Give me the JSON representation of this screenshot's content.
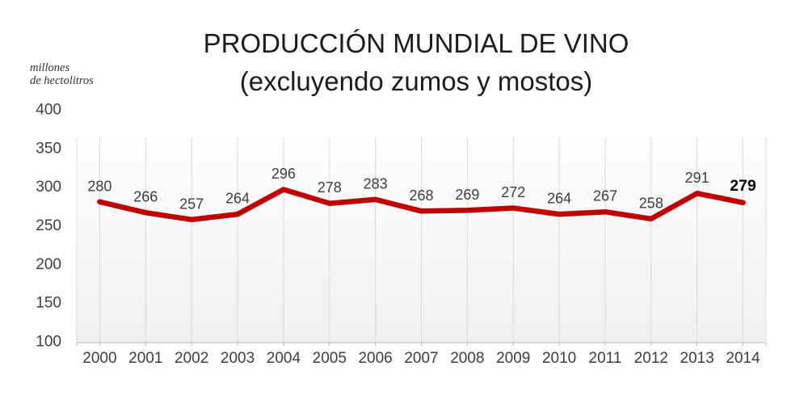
{
  "title": {
    "line1": "PRODUCCIÓN MUNDIAL DE VINO",
    "line2": "(excluyendo zumos y mostos)"
  },
  "y_axis_unit": {
    "line1": "millones",
    "line2": "de hectolitros"
  },
  "chart_data": {
    "type": "line",
    "title": "PRODUCCIÓN MUNDIAL DE VINO (excluyendo zumos y mostos)",
    "ylabel": "millones de hectolitros",
    "xlabel": "",
    "categories": [
      "2000",
      "2001",
      "2002",
      "2003",
      "2004",
      "2005",
      "2006",
      "2007",
      "2008",
      "2009",
      "2010",
      "2011",
      "2012",
      "2013",
      "2014"
    ],
    "series": [
      {
        "name": "Producción mundial de vino",
        "values": [
          280,
          266,
          257,
          264,
          296,
          278,
          283,
          268,
          269,
          272,
          264,
          267,
          258,
          291,
          279
        ]
      }
    ],
    "y_ticks": [
      400,
      350,
      300,
      250,
      200,
      150,
      100
    ],
    "ylim": [
      100,
      400
    ],
    "grid": "vertical-only",
    "legend": "none",
    "data_labels": true,
    "last_label_emphasis": true,
    "colors": {
      "line": "#c00000",
      "data_label": "#3d3d3d",
      "last_data_label": "#000000",
      "tick_label": "#3d3d3d",
      "gridline": "#d9d9d9",
      "plot_edge": "#dcdcdc",
      "axis_line": "#b3b3b3",
      "plot_bg_top": "#fefefe",
      "plot_bg_bottom": "#f0f0f0",
      "title": "#1c1c1c"
    }
  }
}
